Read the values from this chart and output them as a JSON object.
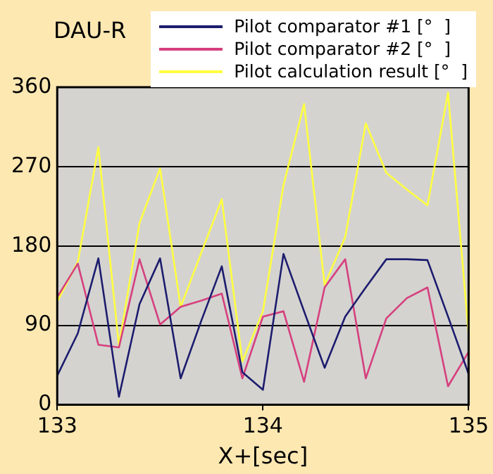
{
  "chart_data": {
    "type": "line",
    "title": "DAU-R",
    "xlabel": "X+[sec]",
    "x": [
      133.0,
      133.1,
      133.2,
      133.3,
      133.4,
      133.5,
      133.6,
      133.7,
      133.8,
      133.9,
      134.0,
      134.1,
      134.2,
      134.3,
      134.4,
      134.5,
      134.6,
      134.7,
      134.8,
      134.9,
      135.0
    ],
    "series": [
      {
        "name": "Pilot comparator #1 [°  ]",
        "color": "#1c1c6e",
        "values": [
          33,
          81,
          166,
          9,
          114,
          166,
          30,
          95,
          157,
          37,
          17,
          171,
          106,
          42,
          100,
          133,
          165,
          165,
          164,
          100,
          35
        ]
      },
      {
        "name": "Pilot comparator #2 [°  ]",
        "color": "#d6407e",
        "values": [
          122,
          160,
          68,
          65,
          165,
          91,
          111,
          118,
          126,
          30,
          100,
          106,
          26,
          133,
          165,
          30,
          98,
          121,
          133,
          21,
          60
        ]
      },
      {
        "name": "Pilot calculation result [°  ]",
        "color": "#ffff40",
        "values": [
          117,
          162,
          292,
          67,
          206,
          268,
          111,
          172,
          233,
          49,
          106,
          249,
          341,
          136,
          190,
          319,
          263,
          244,
          226,
          354,
          80
        ]
      }
    ],
    "xlim": [
      133,
      135
    ],
    "xticks": [
      133,
      134,
      135
    ],
    "ylim": [
      0,
      360
    ],
    "yticks": [
      0,
      90,
      180,
      270,
      360
    ],
    "grid": "y",
    "legend": "top right",
    "marker": "none",
    "line_style": "solid"
  }
}
